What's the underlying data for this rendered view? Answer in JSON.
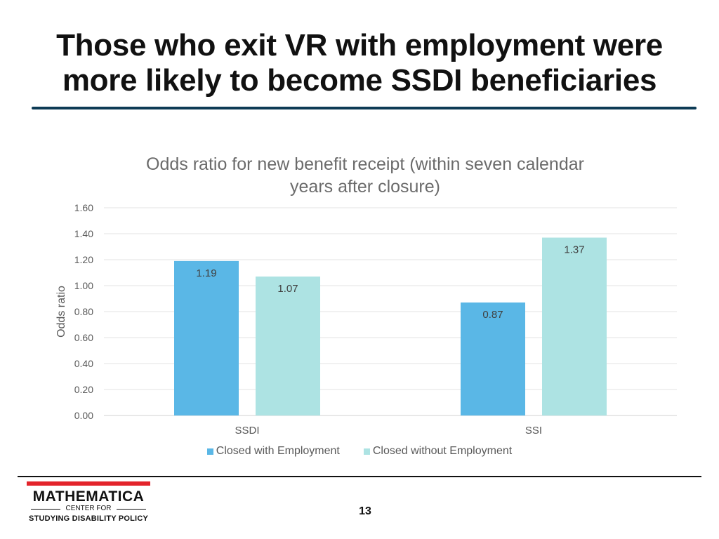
{
  "slide": {
    "title_line1": "Those who exit VR with employment were",
    "title_line2": "more likely to become SSDI beneficiaries",
    "page_number": "13"
  },
  "logo": {
    "name": "MATHEMATICA",
    "sub": "CENTER FOR",
    "bottom": "STUDYING DISABILITY POLICY"
  },
  "colors": {
    "series1": "#5ab7e6",
    "series2": "#ade3e3",
    "title_rule": "#0d3b55",
    "logo_red": "#e3242b"
  },
  "chart_data": {
    "type": "bar",
    "title": "Odds ratio for new benefit receipt (within seven calendar years after closure)",
    "title_line1": "Odds ratio for new benefit receipt (within seven calendar",
    "title_line2": "years after closure)",
    "xlabel": "",
    "ylabel": "Odds ratio",
    "categories": [
      "SSDI",
      "SSI"
    ],
    "series": [
      {
        "name": "Closed with Employment",
        "values": [
          1.19,
          0.87
        ]
      },
      {
        "name": "Closed without Employment",
        "values": [
          1.07,
          1.37
        ]
      }
    ],
    "data_labels": [
      [
        "1.19",
        "0.87"
      ],
      [
        "1.07",
        "1.37"
      ]
    ],
    "ylim": [
      0,
      1.6
    ],
    "yticks": [
      "0.00",
      "0.20",
      "0.40",
      "0.60",
      "0.80",
      "1.00",
      "1.20",
      "1.40",
      "1.60"
    ],
    "grid": true,
    "legend_position": "bottom"
  }
}
